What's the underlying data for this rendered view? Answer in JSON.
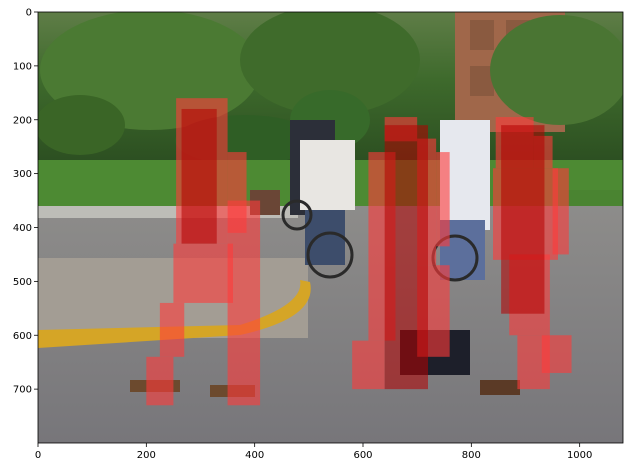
{
  "chart_data": {
    "type": "image-overlay",
    "title": "",
    "xlabel": "",
    "ylabel": "",
    "xlim": [
      0,
      1080
    ],
    "ylim": [
      800,
      0
    ],
    "x_ticks": [
      0,
      200,
      400,
      600,
      800,
      1000
    ],
    "y_ticks": [
      0,
      100,
      200,
      300,
      400,
      500,
      600,
      700
    ],
    "grid": false,
    "image": {
      "description": "street scene with pedestrians and cyclists",
      "width_units": 1080,
      "height_units": 800
    },
    "mask_color": "#ff3b3b",
    "mask_dark_color": "#b50000",
    "masks": [
      {
        "name": "person-left",
        "rects": [
          [
            255,
            160,
            350,
            430,
            "light"
          ],
          [
            350,
            260,
            385,
            410,
            "light"
          ],
          [
            250,
            430,
            360,
            540,
            "light"
          ],
          [
            225,
            540,
            270,
            640,
            "light"
          ],
          [
            200,
            640,
            250,
            730,
            "light"
          ],
          [
            350,
            350,
            410,
            730,
            "light"
          ],
          [
            265,
            180,
            330,
            430,
            "dark"
          ]
        ]
      },
      {
        "name": "person-middle",
        "rects": [
          [
            610,
            260,
            660,
            610,
            "light"
          ],
          [
            640,
            195,
            700,
            240,
            "light"
          ],
          [
            580,
            610,
            640,
            700,
            "light"
          ],
          [
            700,
            235,
            735,
            470,
            "light"
          ],
          [
            735,
            260,
            760,
            435,
            "light"
          ],
          [
            700,
            470,
            760,
            640,
            "light"
          ],
          [
            640,
            210,
            720,
            700,
            "dark"
          ]
        ]
      },
      {
        "name": "person-right",
        "rects": [
          [
            845,
            195,
            915,
            290,
            "light"
          ],
          [
            840,
            290,
            960,
            460,
            "light"
          ],
          [
            915,
            230,
            950,
            290,
            "light"
          ],
          [
            950,
            290,
            980,
            450,
            "light"
          ],
          [
            870,
            450,
            945,
            600,
            "light"
          ],
          [
            885,
            600,
            945,
            700,
            "light"
          ],
          [
            930,
            600,
            985,
            670,
            "light"
          ],
          [
            855,
            210,
            935,
            560,
            "dark"
          ]
        ]
      }
    ]
  }
}
